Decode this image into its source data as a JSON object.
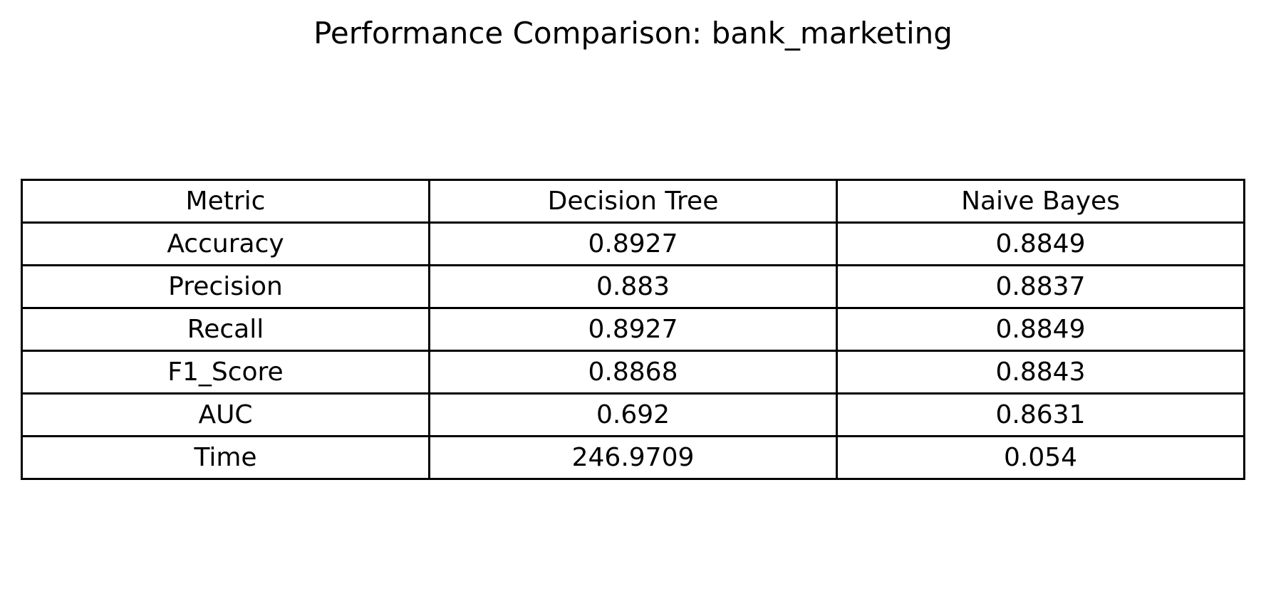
{
  "chart_data": {
    "type": "table",
    "title": "Performance Comparison: bank_marketing",
    "columns": [
      "Metric",
      "Decision Tree",
      "Naive Bayes"
    ],
    "rows": [
      [
        "Accuracy",
        "0.8927",
        "0.8849"
      ],
      [
        "Precision",
        "0.883",
        "0.8837"
      ],
      [
        "Recall",
        "0.8927",
        "0.8849"
      ],
      [
        "F1_Score",
        "0.8868",
        "0.8843"
      ],
      [
        "AUC",
        "0.692",
        "0.8631"
      ],
      [
        "Time",
        "246.9709",
        "0.054"
      ]
    ]
  }
}
